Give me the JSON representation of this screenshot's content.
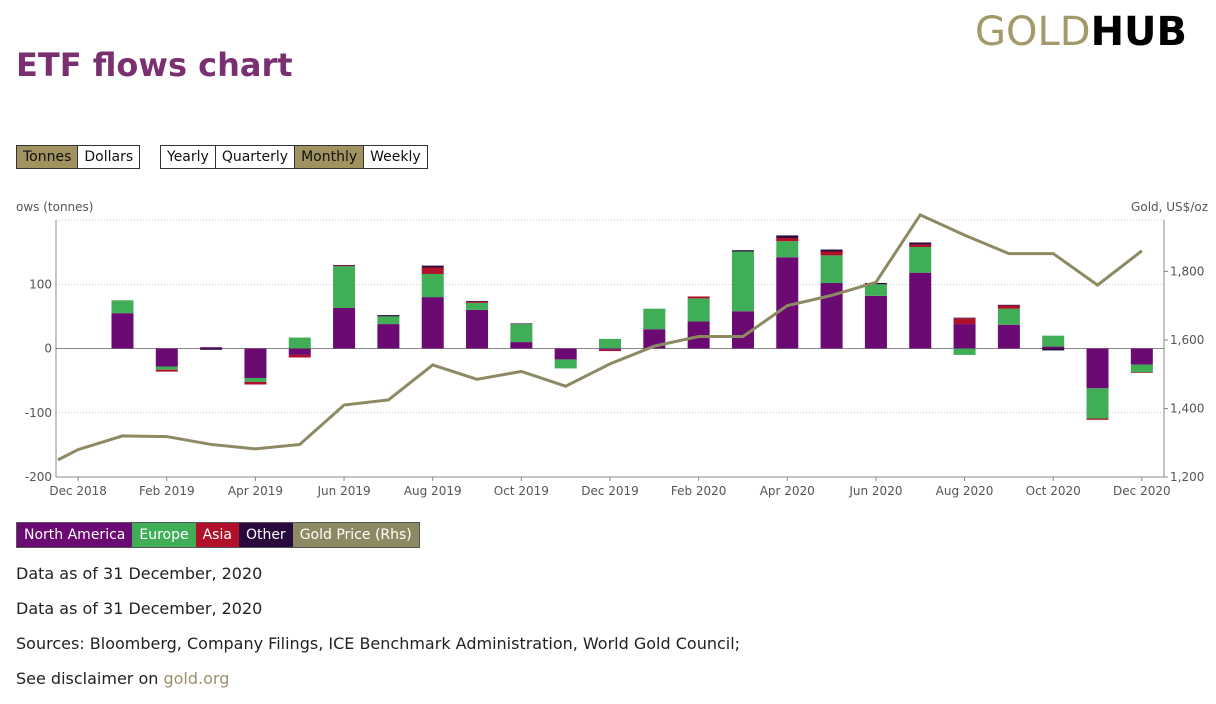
{
  "logo": {
    "gold": "GOLD",
    "hub": "HUB"
  },
  "title": "ETF flows chart",
  "units_toggle": [
    {
      "label": "Tonnes",
      "active": true
    },
    {
      "label": "Dollars",
      "active": false
    }
  ],
  "period_toggle": [
    {
      "label": "Yearly",
      "active": false
    },
    {
      "label": "Quarterly",
      "active": false
    },
    {
      "label": "Monthly",
      "active": true
    },
    {
      "label": "Weekly",
      "active": false
    }
  ],
  "colors": {
    "north_america": "#6a0a72",
    "europe": "#3fae57",
    "asia": "#b0102a",
    "other": "#2a0a3c",
    "gold_price": "#8d8a63",
    "active_button": "#a1935f",
    "title": "#7a3070"
  },
  "chart_data": {
    "type": "bar",
    "stacked": true,
    "ylabel_left": "ows (tonnes)",
    "ylabel_right": "Gold, US$/oz",
    "ylim_left": [
      -200,
      200
    ],
    "ylim_right": [
      1200,
      1950
    ],
    "yticks_left": [
      "-200",
      "-100",
      "0",
      "100"
    ],
    "yticks_right": [
      "1,200",
      "1,400",
      "1,600",
      "1,800"
    ],
    "categories": [
      "Dec 2018",
      "Jan 2019",
      "Feb 2019",
      "Mar 2019",
      "Apr 2019",
      "May 2019",
      "Jun 2019",
      "Jul 2019",
      "Aug 2019",
      "Sep 2019",
      "Oct 2019",
      "Nov 2019",
      "Dec 2019",
      "Jan 2020",
      "Feb 2020",
      "Mar 2020",
      "Apr 2020",
      "May 2020",
      "Jun 2020",
      "Jul 2020",
      "Aug 2020",
      "Sep 2020",
      "Oct 2020",
      "Nov 2020",
      "Dec 2020"
    ],
    "xtick_labels": [
      "Dec 2018",
      "Feb 2019",
      "Apr 2019",
      "Jun 2019",
      "Aug 2019",
      "Oct 2019",
      "Dec 2019",
      "Feb 2020",
      "Apr 2020",
      "Jun 2020",
      "Aug 2020",
      "Oct 2020",
      "Dec 2020"
    ],
    "series": [
      {
        "name": "North America",
        "key": "north_america",
        "values": [
          0,
          55,
          -28,
          2,
          -46,
          -10,
          63,
          38,
          80,
          60,
          10,
          -17,
          -2,
          30,
          42,
          58,
          142,
          102,
          82,
          118,
          38,
          37,
          3,
          -62,
          -25
        ]
      },
      {
        "name": "Europe",
        "key": "europe",
        "values": [
          0,
          20,
          -5,
          0,
          -6,
          17,
          65,
          12,
          36,
          11,
          28,
          -14,
          15,
          32,
          36,
          93,
          25,
          43,
          18,
          40,
          -10,
          25,
          17,
          -47,
          -12
        ]
      },
      {
        "name": "Asia",
        "key": "asia",
        "values": [
          0,
          0,
          -3,
          0,
          -4,
          -4,
          1,
          0,
          10,
          2,
          0,
          0,
          -2,
          0,
          3,
          0,
          5,
          6,
          0,
          4,
          9,
          5,
          0,
          -2,
          -1
        ]
      },
      {
        "name": "Other",
        "key": "other",
        "values": [
          0,
          0,
          0,
          -2,
          0,
          0,
          1,
          2,
          3,
          1,
          1,
          0,
          0,
          0,
          0,
          2,
          4,
          3,
          2,
          3,
          1,
          1,
          -3,
          0,
          0
        ]
      }
    ],
    "line_series": {
      "name": "Gold Price (Rhs)",
      "key": "gold_price",
      "axis": "right",
      "x": [
        "Dec 2018",
        "Dec 2018",
        "Jan 2019",
        "Feb 2019",
        "Mar 2019",
        "Apr 2019",
        "May 2019",
        "Jun 2019",
        "Jul 2019",
        "Aug 2019",
        "Sep 2019",
        "Oct 2019",
        "Nov 2019",
        "Dec 2019",
        "Jan 2020",
        "Feb 2020",
        "Mar 2020",
        "Apr 2020",
        "May 2020",
        "Jun 2020",
        "Jul 2020",
        "Aug 2020",
        "Sep 2020",
        "Oct 2020",
        "Nov 2020",
        "Dec 2020"
      ],
      "values": [
        1250,
        1280,
        1320,
        1318,
        1295,
        1282,
        1295,
        1410,
        1425,
        1527,
        1485,
        1508,
        1465,
        1530,
        1582,
        1610,
        1610,
        1700,
        1730,
        1768,
        1965,
        1906,
        1852,
        1852,
        1760,
        1860
      ]
    },
    "legend": [
      "North America",
      "Europe",
      "Asia",
      "Other",
      "Gold Price (Rhs)"
    ],
    "legend_position": "bottom-left",
    "grid": true
  },
  "notes": {
    "data_as_of_1": "Data as of 31 December, 2020",
    "data_as_of_2": "Data as of 31 December, 2020",
    "sources": "Sources: Bloomberg, Company Filings, ICE Benchmark Administration, World Gold Council;",
    "disclaimer_prefix": "See disclaimer on ",
    "disclaimer_link": "gold.org"
  }
}
